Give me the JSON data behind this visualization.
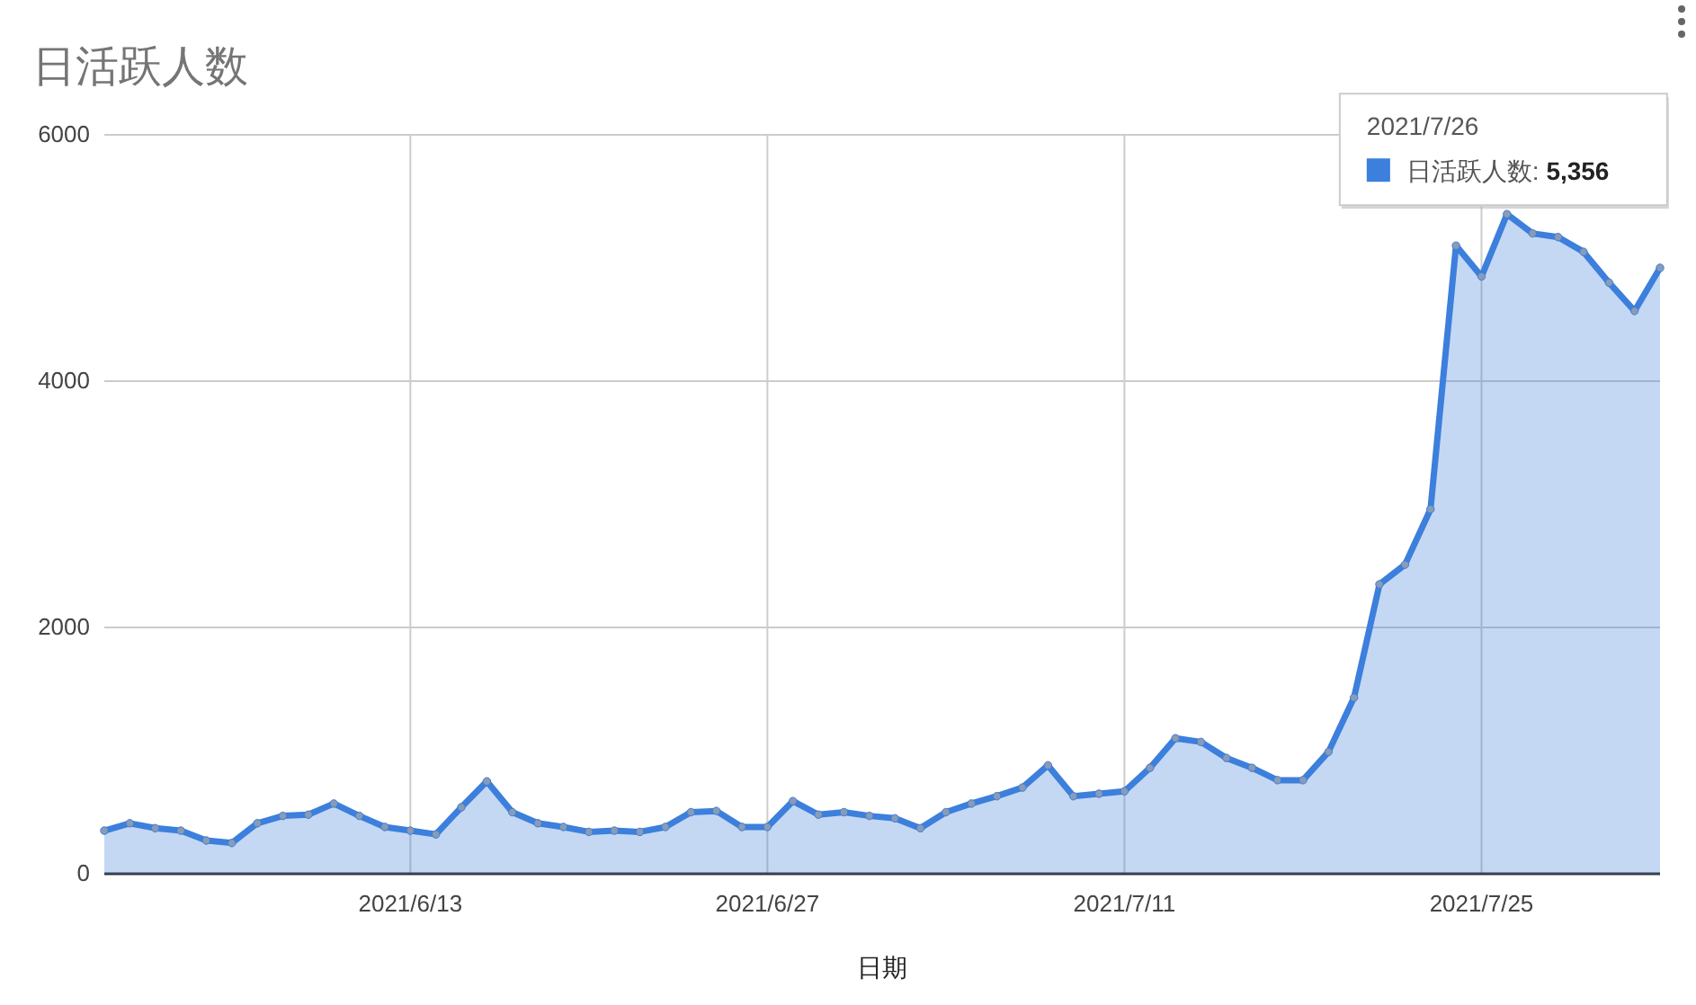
{
  "chart_data": {
    "type": "area",
    "title": "日活跃人数",
    "xlabel": "日期",
    "x": [
      "2021-06-01",
      "2021-06-02",
      "2021-06-03",
      "2021-06-04",
      "2021-06-05",
      "2021-06-06",
      "2021-06-07",
      "2021-06-08",
      "2021-06-09",
      "2021-06-10",
      "2021-06-11",
      "2021-06-12",
      "2021-06-13",
      "2021-06-14",
      "2021-06-15",
      "2021-06-16",
      "2021-06-17",
      "2021-06-18",
      "2021-06-19",
      "2021-06-20",
      "2021-06-21",
      "2021-06-22",
      "2021-06-23",
      "2021-06-24",
      "2021-06-25",
      "2021-06-26",
      "2021-06-27",
      "2021-06-28",
      "2021-06-29",
      "2021-06-30",
      "2021-07-01",
      "2021-07-02",
      "2021-07-03",
      "2021-07-04",
      "2021-07-05",
      "2021-07-06",
      "2021-07-07",
      "2021-07-08",
      "2021-07-09",
      "2021-07-10",
      "2021-07-11",
      "2021-07-12",
      "2021-07-13",
      "2021-07-14",
      "2021-07-15",
      "2021-07-16",
      "2021-07-17",
      "2021-07-18",
      "2021-07-19",
      "2021-07-20",
      "2021-07-21",
      "2021-07-22",
      "2021-07-23",
      "2021-07-24",
      "2021-07-25",
      "2021-07-26",
      "2021-07-27",
      "2021-07-28",
      "2021-07-29",
      "2021-07-30",
      "2021-07-31",
      "2021-08-01"
    ],
    "series": [
      {
        "color": "#3c7fdc",
        "values": [
          350,
          410,
          370,
          350,
          270,
          250,
          410,
          470,
          480,
          570,
          470,
          380,
          350,
          320,
          540,
          750,
          500,
          410,
          380,
          340,
          350,
          340,
          380,
          500,
          510,
          380,
          380,
          590,
          480,
          500,
          470,
          450,
          370,
          500,
          570,
          630,
          700,
          880,
          630,
          650,
          670,
          860,
          1100,
          1070,
          940,
          860,
          760,
          760,
          990,
          1430,
          2350,
          2510,
          2960,
          5100,
          4850,
          5356,
          5200,
          5170,
          5050,
          4800,
          4570,
          4920
        ]
      }
    ],
    "xlim": [
      "2021-06-01",
      "2021-08-01"
    ],
    "xticks": [
      {
        "value": "2021-06-13",
        "label": "2021/6/13"
      },
      {
        "value": "2021-06-27",
        "label": "2021/6/27"
      },
      {
        "value": "2021-07-11",
        "label": "2021/7/11"
      },
      {
        "value": "2021-07-25",
        "label": "2021/7/25"
      }
    ],
    "ylim": [
      0,
      6000
    ],
    "yticks": [
      0,
      2000,
      4000,
      6000
    ],
    "grid": true,
    "marker": "circle",
    "line_style": "solid",
    "annotations": [
      "2021/7/26",
      {
        "text": "日活跃人数: 5,356",
        "x": "2021-07-26",
        "y": 5356
      }
    ]
  }
}
